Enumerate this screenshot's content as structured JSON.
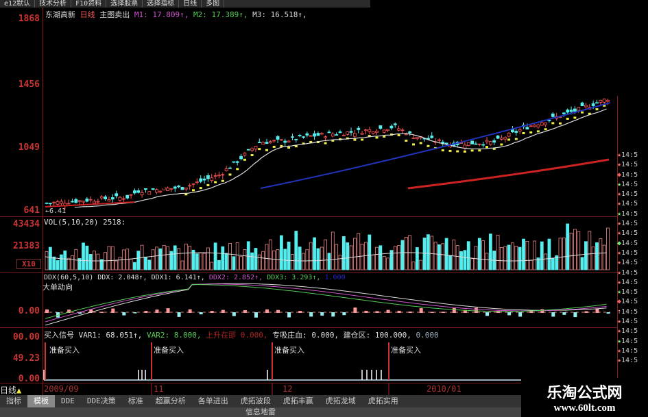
{
  "toolbar": {
    "items": [
      "e12默认",
      "技术分析",
      "F10资料",
      "选择股票",
      "选择指标",
      "日线",
      "多图"
    ]
  },
  "main": {
    "stock": "东湖高新",
    "period": "日线",
    "indicator": "主图卖出",
    "m1": "M1: 17.809↑,",
    "m2": "M2: 17.389↑,",
    "m3": "M3: 16.518↑,",
    "low_marker": "←6.41",
    "price_axis": [
      "1868",
      "1456",
      "1049",
      "641"
    ],
    "price_axis_values": [
      1868,
      1456,
      1049,
      641
    ],
    "sell_label": "出",
    "close_keypoints": [
      [
        0,
        690
      ],
      [
        22,
        730
      ],
      [
        25,
        770
      ],
      [
        37,
        790
      ],
      [
        47,
        870
      ],
      [
        52,
        960
      ],
      [
        58,
        1080
      ],
      [
        65,
        1090
      ],
      [
        72,
        1120
      ],
      [
        85,
        1150
      ],
      [
        95,
        1180
      ],
      [
        100,
        1120
      ],
      [
        110,
        1070
      ],
      [
        122,
        1080
      ],
      [
        130,
        1170
      ],
      [
        145,
        1290
      ],
      [
        153,
        1360
      ]
    ]
  },
  "volume": {
    "label": "VOL(5,10,20) 2518:",
    "axis": [
      "43434",
      "21383"
    ],
    "multiplier": "X10"
  },
  "ddx": {
    "label": "DDX(60,5,10)",
    "ddx": "DDX: 2.048↑,",
    "ddx1": "DDX1: 6.141↑,",
    "ddx2": "DDX2: 2.852↑,",
    "ddx3": "DDX3: 3.293↑,",
    "extra": "1.000",
    "title": "大单动向",
    "axis": "0.00"
  },
  "signal": {
    "label": "买入信号",
    "var1": "VAR1: 68.051↑,",
    "var2": "VAR2: 8.000,",
    "rise": "上升在即",
    "rise_val": "0.000,",
    "zhuangxi": "专吸庄血: 0.000,",
    "jiancang": "建仓区: 100.000,",
    "last": "0.000",
    "axis": [
      "00.00",
      "49.23",
      "0.00"
    ],
    "buy_text": "准备买入"
  },
  "dates": [
    "2009/09",
    "11",
    "12",
    "2010/01"
  ],
  "period_label": "日线",
  "tabs": [
    "指标",
    "模板",
    "DDE",
    "DDE决策",
    "标准",
    "超赢分析",
    "各单进出",
    "虎拓波段",
    "虎拓丰赢",
    "虎拓龙域",
    "虎拓实用"
  ],
  "active_tab": 1,
  "mine_label": "信息地雷",
  "right_list": {
    "time": "14:5",
    "icons": [
      "star-red",
      "star-red",
      "diamond-red",
      "star-green",
      "star-red",
      "star-red",
      "star-green",
      "star-red",
      "star-red",
      "diamond-green",
      "star-red",
      "star-red",
      "star-red",
      "star-red",
      "star-green",
      "diamond-red",
      "arrow-up",
      "star-red",
      "star-red",
      "star-green",
      "star-red",
      "star-red"
    ]
  },
  "watermark": {
    "name": "乐淘公式网",
    "url": "www.60lt.com"
  },
  "colors": {
    "up": "#ff5555",
    "down": "#55eeee",
    "axis": "#cc3333",
    "m1": "#cc55cc",
    "m2": "#55cc55",
    "ma_blue": "#2233bb",
    "ma_red": "#cc2222"
  }
}
